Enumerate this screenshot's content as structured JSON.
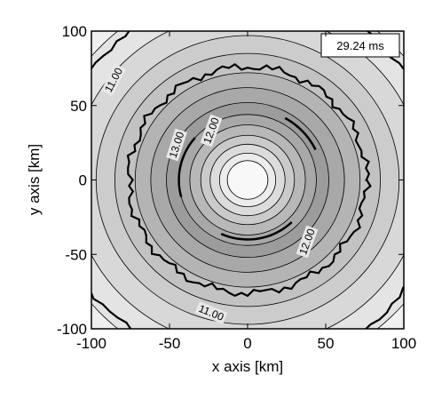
{
  "chart_data": {
    "type": "contour",
    "annotation": "29.24 ms",
    "xlabel": "x axis [km]",
    "ylabel": "y axis [km]",
    "xlim": [
      -100,
      100
    ],
    "ylim": [
      -100,
      100
    ],
    "xticks": [
      -100,
      -50,
      0,
      50,
      100
    ],
    "yticks": [
      -100,
      -50,
      0,
      50,
      100
    ],
    "levels": [
      {
        "value": 11,
        "label": "11.00"
      },
      {
        "value": 12,
        "label": "12.00"
      },
      {
        "value": 13,
        "label": "13.00"
      }
    ]
  }
}
